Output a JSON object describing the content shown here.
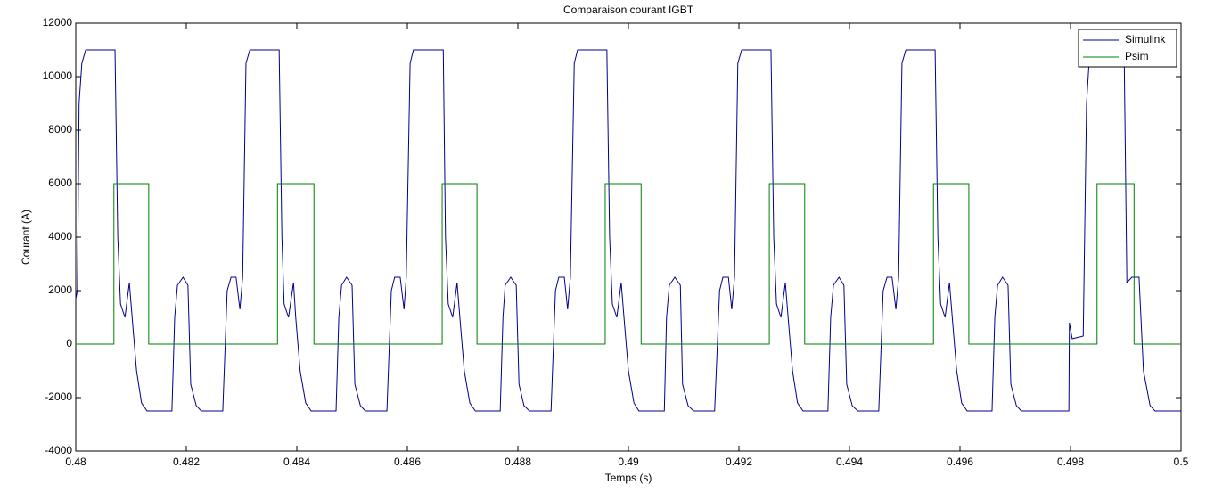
{
  "chart_data": {
    "type": "line",
    "title": "Comparaison courant IGBT",
    "x_label": "Temps (s)",
    "y_label": "Courant (A)",
    "xlim": [
      0.48,
      0.5
    ],
    "xticks": [
      0.48,
      0.482,
      0.484,
      0.486,
      0.488,
      0.49,
      0.492,
      0.494,
      0.496,
      0.498,
      0.5
    ],
    "ylim": [
      -4000,
      12000
    ],
    "yticks": [
      -4000,
      -2000,
      0,
      2000,
      4000,
      6000,
      8000,
      10000,
      12000
    ],
    "grid": false,
    "legend": "northeast",
    "series": [
      {
        "name": "Simulink",
        "color": "#00008b",
        "x": [
          0.48,
          0.48003,
          0.48006,
          0.48011,
          0.48018,
          0.48071,
          0.48076,
          0.48081,
          0.48089,
          0.48097,
          0.48102,
          0.4811,
          0.48119,
          0.48129,
          0.48174,
          0.48179,
          0.48184,
          0.48194,
          0.48203,
          0.48208,
          0.48218,
          0.48227,
          0.48266,
          0.48274,
          0.48281,
          0.4829,
          0.48297,
          0.48302,
          0.48308,
          0.48315,
          0.48368,
          0.48373,
          0.48377,
          0.48385,
          0.48394,
          0.48398,
          0.48406,
          0.48416,
          0.48426,
          0.48471,
          0.48476,
          0.48481,
          0.4849,
          0.485,
          0.48505,
          0.48515,
          0.48524,
          0.48563,
          0.48571,
          0.48577,
          0.48587,
          0.48594,
          0.48598,
          0.48605,
          0.48611,
          0.48665,
          0.48669,
          0.48674,
          0.48682,
          0.4869,
          0.48695,
          0.48703,
          0.48713,
          0.48723,
          0.48768,
          0.48773,
          0.48777,
          0.48787,
          0.48797,
          0.48802,
          0.48811,
          0.48821,
          0.4886,
          0.48868,
          0.48874,
          0.48884,
          0.4889,
          0.48895,
          0.48902,
          0.48908,
          0.48961,
          0.48966,
          0.48971,
          0.48979,
          0.48987,
          0.48992,
          0.49,
          0.4901,
          0.49019,
          0.49065,
          0.49069,
          0.49074,
          0.49084,
          0.49094,
          0.49098,
          0.49108,
          0.49118,
          0.49156,
          0.49165,
          0.49171,
          0.49181,
          0.49187,
          0.49192,
          0.49198,
          0.49205,
          0.49258,
          0.49263,
          0.49268,
          0.49276,
          0.49284,
          0.49289,
          0.49297,
          0.49306,
          0.49316,
          0.49361,
          0.49366,
          0.49371,
          0.49381,
          0.4939,
          0.49395,
          0.49405,
          0.49415,
          0.49453,
          0.49461,
          0.49468,
          0.49477,
          0.49484,
          0.49489,
          0.49495,
          0.49502,
          0.49555,
          0.4956,
          0.49565,
          0.49573,
          0.49581,
          0.49586,
          0.49594,
          0.49603,
          0.49613,
          0.49658,
          0.49663,
          0.49668,
          0.49677,
          0.49687,
          0.49692,
          0.49702,
          0.49711,
          0.49797,
          0.49798,
          0.49803,
          0.49823,
          0.49829,
          0.49835,
          0.49897,
          0.49902,
          0.49911,
          0.49924,
          0.49932,
          0.49944,
          0.49953,
          0.5
        ],
        "values": [
          1700,
          2000,
          9000,
          10500,
          11000,
          11000,
          4000,
          1500,
          1000,
          2300,
          1000,
          -1000,
          -2200,
          -2500,
          -2500,
          1000,
          2200,
          2500,
          2200,
          -1500,
          -2300,
          -2500,
          -2500,
          2000,
          2500,
          2500,
          1300,
          2500,
          10500,
          11000,
          11000,
          4000,
          1500,
          1000,
          2300,
          1000,
          -1000,
          -2200,
          -2500,
          -2500,
          1000,
          2200,
          2500,
          2200,
          -1500,
          -2300,
          -2500,
          -2500,
          2000,
          2500,
          2500,
          1300,
          2500,
          10500,
          11000,
          11000,
          4000,
          1500,
          1000,
          2300,
          1000,
          -1000,
          -2200,
          -2500,
          -2500,
          1000,
          2200,
          2500,
          2200,
          -1500,
          -2300,
          -2500,
          -2500,
          2000,
          2500,
          2500,
          1300,
          2500,
          10500,
          11000,
          11000,
          4000,
          1500,
          1000,
          2300,
          1000,
          -1000,
          -2200,
          -2500,
          -2500,
          1000,
          2200,
          2500,
          2200,
          -1500,
          -2300,
          -2500,
          -2500,
          2000,
          2500,
          2500,
          1300,
          2500,
          10500,
          11000,
          11000,
          4000,
          1500,
          1000,
          2300,
          1000,
          -1000,
          -2200,
          -2500,
          -2500,
          1000,
          2200,
          2500,
          2200,
          -1500,
          -2300,
          -2500,
          -2500,
          2000,
          2500,
          2500,
          1300,
          2500,
          10500,
          11000,
          11000,
          4000,
          1500,
          1000,
          2300,
          1000,
          -1000,
          -2200,
          -2500,
          -2500,
          1000,
          2200,
          2500,
          2200,
          -1500,
          -2300,
          -2500,
          -2500,
          800,
          200,
          300,
          9000,
          11000,
          11000,
          2300,
          2500,
          2500,
          -1000,
          -2300,
          -2500,
          -2500
        ]
      },
      {
        "name": "Psim",
        "color": "#008000",
        "x": [
          0.48,
          0.48069,
          0.48069,
          0.48132,
          0.48132,
          0.48365,
          0.48365,
          0.48431,
          0.48431,
          0.48663,
          0.48663,
          0.48726,
          0.48726,
          0.48958,
          0.48958,
          0.49023,
          0.49023,
          0.49255,
          0.49255,
          0.49319,
          0.49319,
          0.49552,
          0.49552,
          0.49616,
          0.49616,
          0.49848,
          0.49848,
          0.49915,
          0.49915,
          0.5
        ],
        "values": [
          0,
          0,
          6000,
          6000,
          0,
          0,
          6000,
          6000,
          0,
          0,
          6000,
          6000,
          0,
          0,
          6000,
          6000,
          0,
          0,
          6000,
          6000,
          0,
          0,
          6000,
          6000,
          0,
          0,
          6000,
          6000,
          0,
          0
        ]
      }
    ]
  }
}
